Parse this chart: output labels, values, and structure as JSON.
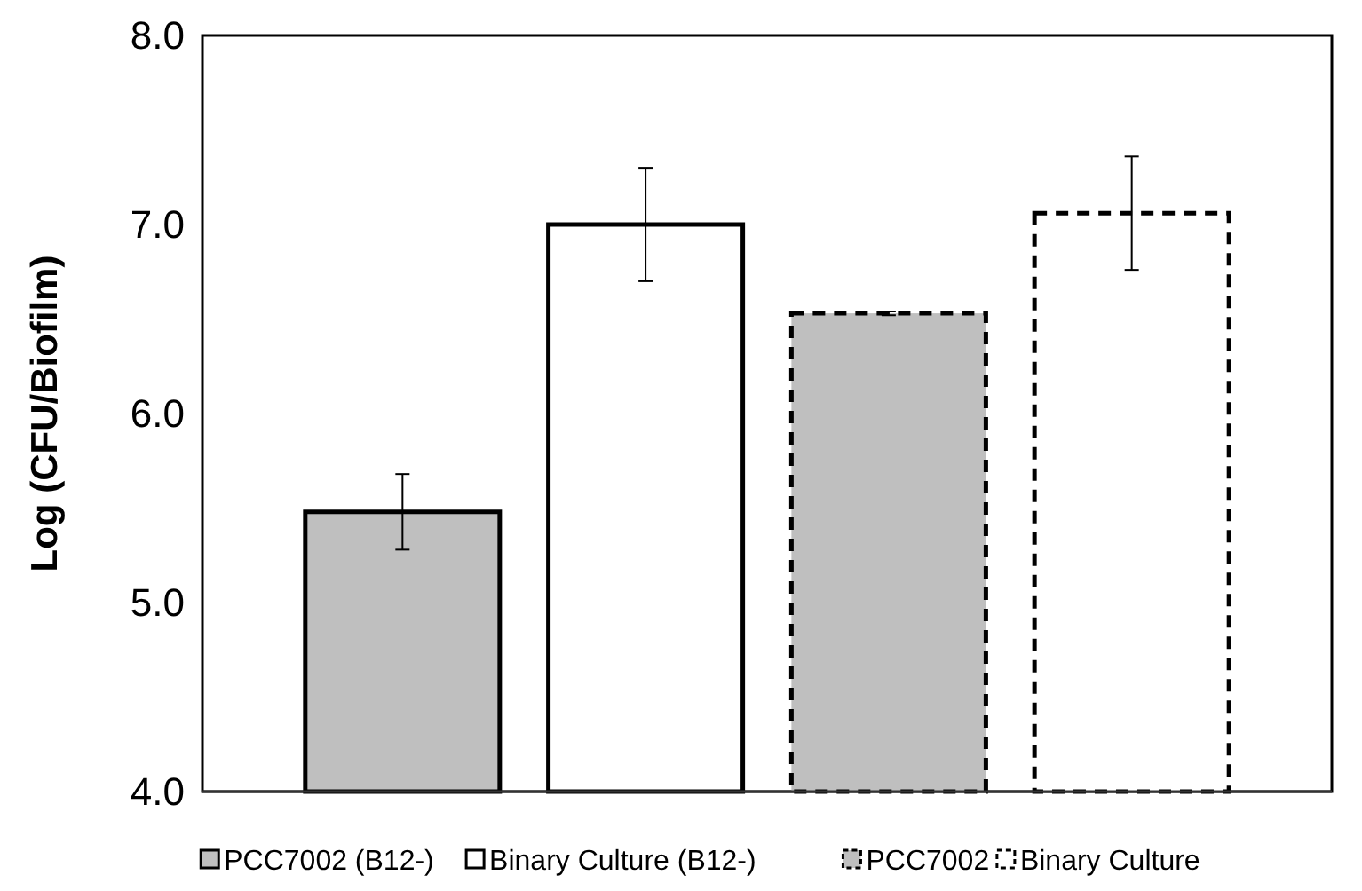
{
  "chart_data": {
    "type": "bar",
    "ylabel": "Log (CFU/Biofilm)",
    "categories": [
      null,
      null,
      null,
      null
    ],
    "series": [
      {
        "name": "PCC7002 (B12-)",
        "color": "#bfbfbf",
        "line_style": "solid",
        "values": [
          5.48,
          null,
          null,
          null
        ],
        "errors": [
          0.2,
          null,
          null,
          null
        ]
      },
      {
        "name": "Binary Culture (B12-)",
        "color": "#ffffff",
        "line_style": "solid",
        "values": [
          null,
          7.0,
          null,
          null
        ],
        "errors": [
          null,
          0.3,
          null,
          null
        ]
      },
      {
        "name": "PCC7002",
        "color": "#bfbfbf",
        "line_style": "dashed",
        "values": [
          null,
          null,
          6.53,
          null
        ],
        "errors": [
          null,
          null,
          0.01,
          null
        ]
      },
      {
        "name": "Binary Culture",
        "color": "#ffffff",
        "line_style": "dashed",
        "values": [
          null,
          null,
          null,
          7.06
        ],
        "errors": [
          null,
          null,
          null,
          0.3
        ]
      }
    ],
    "ylim": [
      4,
      8
    ],
    "yticks": [
      {
        "value": 4,
        "label": "4.0"
      },
      {
        "value": 5,
        "label": "5.0"
      },
      {
        "value": 6,
        "label": "6.0"
      },
      {
        "value": 7,
        "label": "7.0"
      },
      {
        "value": 8,
        "label": "8.0"
      }
    ],
    "grid": false,
    "legend": "bottom"
  }
}
